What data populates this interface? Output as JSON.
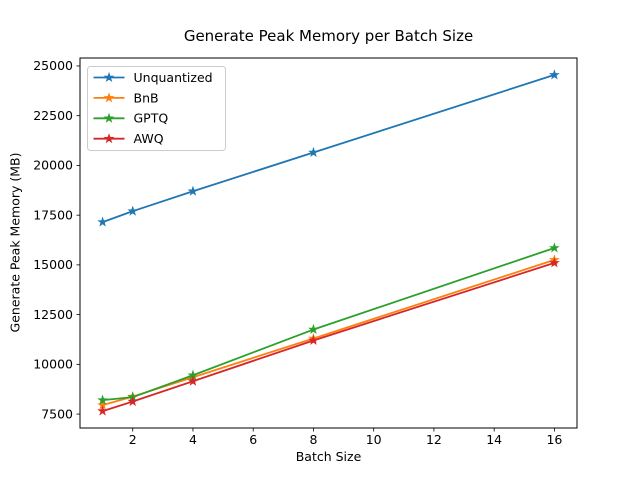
{
  "figure": {
    "background": "#ffffff",
    "spine_color": "#000000",
    "legend_border_color": "#cccccc",
    "legend_background": "#ffffff"
  },
  "chart_data": {
    "type": "line",
    "title": "Generate Peak Memory per Batch Size",
    "xlabel": "Batch Size",
    "ylabel": "Generate Peak Memory (MB)",
    "x": [
      1,
      2,
      4,
      8,
      16
    ],
    "series": [
      {
        "name": "Unquantized",
        "color": "#1f77b4",
        "values": [
          17150,
          17700,
          18700,
          20650,
          24550
        ]
      },
      {
        "name": "BnB",
        "color": "#ff7f0e",
        "values": [
          7950,
          8380,
          9350,
          11300,
          15250
        ]
      },
      {
        "name": "GPTQ",
        "color": "#2ca02c",
        "values": [
          8200,
          8350,
          9450,
          11750,
          15850
        ]
      },
      {
        "name": "AWQ",
        "color": "#d62728",
        "values": [
          7650,
          8130,
          9150,
          11200,
          15100
        ]
      }
    ],
    "xticks": [
      2,
      4,
      6,
      8,
      10,
      12,
      14,
      16
    ],
    "yticks": [
      7500,
      10000,
      12500,
      15000,
      17500,
      20000,
      22500,
      25000
    ],
    "xlim": [
      0.25,
      16.75
    ],
    "ylim": [
      6800,
      25400
    ],
    "marker": "star",
    "grid": false,
    "legend": {
      "position": "upper-left",
      "entries": [
        "Unquantized",
        "BnB",
        "GPTQ",
        "AWQ"
      ]
    }
  }
}
